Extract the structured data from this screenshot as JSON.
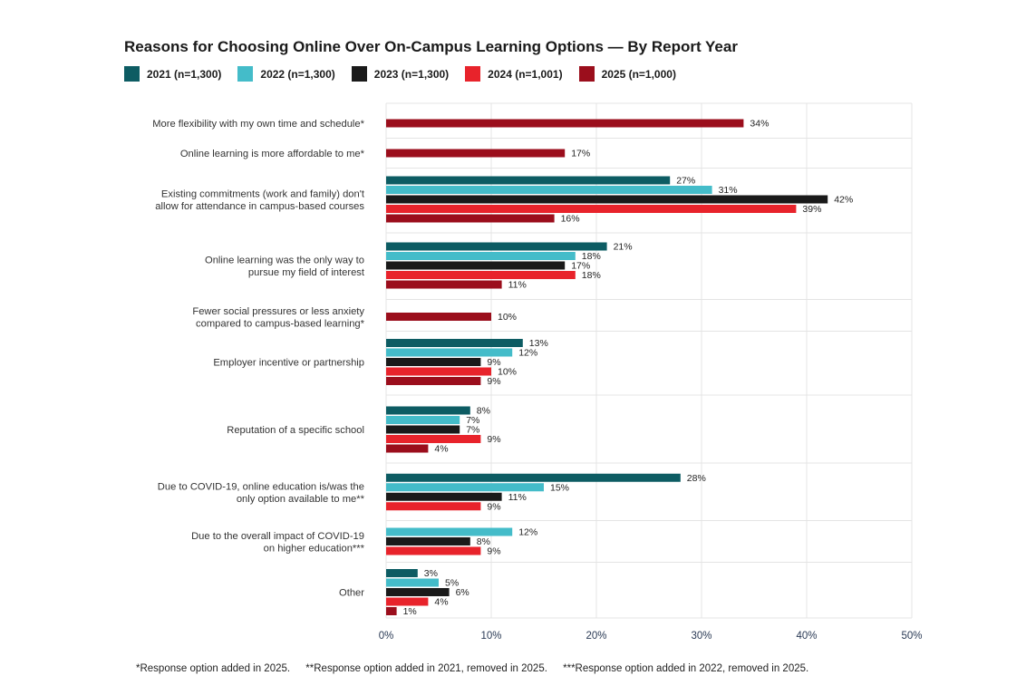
{
  "chart_data": {
    "type": "bar",
    "orientation": "horizontal",
    "title": "Reasons for Choosing Online Over On-Campus Learning Options — By Report Year",
    "xlim": [
      0,
      50
    ],
    "x_ticks": [
      "0%",
      "10%",
      "20%",
      "30%",
      "40%",
      "50%"
    ],
    "x_tick_values": [
      0,
      10,
      20,
      30,
      40,
      50
    ],
    "grid": true,
    "legend_position": "top-left",
    "categories": [
      [
        "More flexibility with my own time and schedule*"
      ],
      [
        "Online learning is more affordable to me*"
      ],
      [
        "Existing commitments (work and family) don't",
        "allow for attendance in campus-based courses"
      ],
      [
        "Online learning was the only way to",
        "pursue my field of interest"
      ],
      [
        "Fewer social pressures or less anxiety",
        "compared to campus-based learning*"
      ],
      [
        "Employer incentive or partnership"
      ],
      [
        "Reputation of a specific school"
      ],
      [
        "Due to COVID-19, online education is/was the",
        "only option available to me**"
      ],
      [
        "Due to the overall impact of COVID-19",
        "on higher education***"
      ],
      [
        "Other"
      ]
    ],
    "series": [
      {
        "name": "2021 (n=1,300)",
        "color": "#0d5c63",
        "values": [
          null,
          null,
          27,
          21,
          null,
          13,
          8,
          28,
          null,
          3
        ]
      },
      {
        "name": "2022 (n=1,300)",
        "color": "#44bcc9",
        "values": [
          null,
          null,
          31,
          18,
          null,
          12,
          7,
          15,
          12,
          5
        ]
      },
      {
        "name": "2023 (n=1,300)",
        "color": "#1a1a1a",
        "values": [
          null,
          null,
          42,
          17,
          null,
          9,
          7,
          11,
          8,
          6
        ]
      },
      {
        "name": "2024 (n=1,001)",
        "color": "#e8232b",
        "values": [
          null,
          null,
          39,
          18,
          null,
          10,
          9,
          9,
          9,
          4
        ]
      },
      {
        "name": "2025 (n=1,000)",
        "color": "#9b0e1c",
        "values": [
          34,
          17,
          16,
          11,
          10,
          9,
          4,
          null,
          null,
          1
        ]
      }
    ]
  },
  "footnotes": [
    "*Response option added in 2025.",
    "**Response option added in 2021, removed in 2025.",
    "***Response option added in 2022, removed in 2025."
  ]
}
